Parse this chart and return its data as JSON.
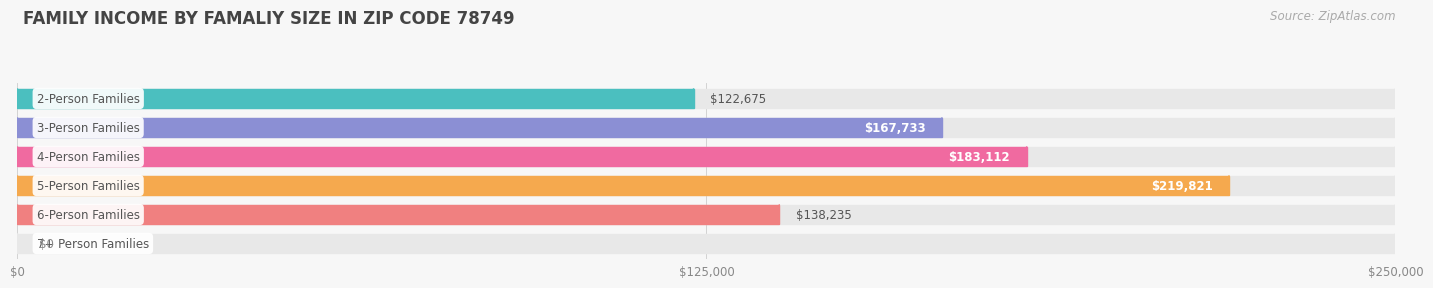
{
  "title": "FAMILY INCOME BY FAMALIY SIZE IN ZIP CODE 78749",
  "source": "Source: ZipAtlas.com",
  "categories": [
    "2-Person Families",
    "3-Person Families",
    "4-Person Families",
    "5-Person Families",
    "6-Person Families",
    "7+ Person Families"
  ],
  "values": [
    122675,
    167733,
    183112,
    219821,
    138235,
    0
  ],
  "bar_colors": [
    "#4bbfbf",
    "#8b8fd4",
    "#f06aa0",
    "#f5a94e",
    "#f08080",
    "#90bce8"
  ],
  "bar_bg_color": "#e8e8e8",
  "value_labels": [
    "$122,675",
    "$167,733",
    "$183,112",
    "$219,821",
    "$138,235",
    "$0"
  ],
  "value_label_inside": [
    false,
    true,
    true,
    true,
    false,
    false
  ],
  "xmax": 250000,
  "xticks": [
    0,
    125000,
    250000
  ],
  "xtick_labels": [
    "$0",
    "$125,000",
    "$250,000"
  ],
  "background_color": "#f7f7f7",
  "title_color": "#444444",
  "title_fontsize": 12,
  "label_fontsize": 8.5,
  "value_fontsize": 8.5,
  "source_fontsize": 8.5
}
